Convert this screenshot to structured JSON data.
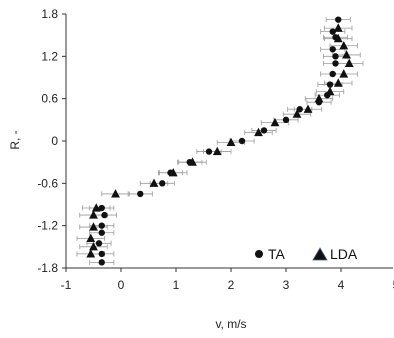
{
  "chart_data": {
    "type": "scatter",
    "xlabel": "v, m/s",
    "ylabel": "R, -",
    "xlim": [
      -1,
      5
    ],
    "ylim": [
      -1.8,
      1.8
    ],
    "xticks": [
      "-1",
      "0",
      "1",
      "2",
      "3",
      "4",
      "5"
    ],
    "yticks": [
      "1.8",
      "1.2",
      "0.6",
      "0",
      "-0.6",
      "-1.2",
      "-1.8"
    ],
    "grid": false,
    "legend_position": "bottom-right",
    "error_bars": "horizontal",
    "series": [
      {
        "name": "TA",
        "marker": "circle",
        "color": "#111111",
        "points": [
          [
            3.95,
            1.72
          ],
          [
            3.85,
            1.55
          ],
          [
            3.9,
            1.47
          ],
          [
            3.85,
            1.3
          ],
          [
            3.9,
            1.2
          ],
          [
            3.9,
            1.1
          ],
          [
            3.85,
            0.95
          ],
          [
            3.8,
            0.8
          ],
          [
            3.75,
            0.65
          ],
          [
            3.6,
            0.55
          ],
          [
            3.25,
            0.45
          ],
          [
            3.0,
            0.3
          ],
          [
            2.6,
            0.15
          ],
          [
            2.2,
            0.0
          ],
          [
            1.6,
            -0.15
          ],
          [
            1.25,
            -0.3
          ],
          [
            0.9,
            -0.45
          ],
          [
            0.75,
            -0.6
          ],
          [
            0.35,
            -0.75
          ],
          [
            -0.35,
            -0.95
          ],
          [
            -0.3,
            -1.05
          ],
          [
            -0.35,
            -1.2
          ],
          [
            -0.35,
            -1.3
          ],
          [
            -0.4,
            -1.45
          ],
          [
            -0.35,
            -1.6
          ],
          [
            -0.35,
            -1.72
          ]
        ],
        "xerr": 0.22
      },
      {
        "name": "LDA",
        "marker": "triangle",
        "color": "#111111",
        "points": [
          [
            3.95,
            1.6
          ],
          [
            3.95,
            1.45
          ],
          [
            4.05,
            1.35
          ],
          [
            4.1,
            1.22
          ],
          [
            4.15,
            1.1
          ],
          [
            4.05,
            0.95
          ],
          [
            3.95,
            0.82
          ],
          [
            3.8,
            0.7
          ],
          [
            3.6,
            0.6
          ],
          [
            3.4,
            0.45
          ],
          [
            3.2,
            0.38
          ],
          [
            2.8,
            0.26
          ],
          [
            2.5,
            0.12
          ],
          [
            2.0,
            -0.02
          ],
          [
            1.75,
            -0.15
          ],
          [
            1.3,
            -0.3
          ],
          [
            0.95,
            -0.45
          ],
          [
            0.6,
            -0.6
          ],
          [
            -0.1,
            -0.75
          ],
          [
            -0.45,
            -0.95
          ],
          [
            -0.5,
            -1.05
          ],
          [
            -0.5,
            -1.22
          ],
          [
            -0.55,
            -1.38
          ],
          [
            -0.5,
            -1.5
          ],
          [
            -0.55,
            -1.6
          ]
        ],
        "xerr": 0.25
      }
    ]
  }
}
